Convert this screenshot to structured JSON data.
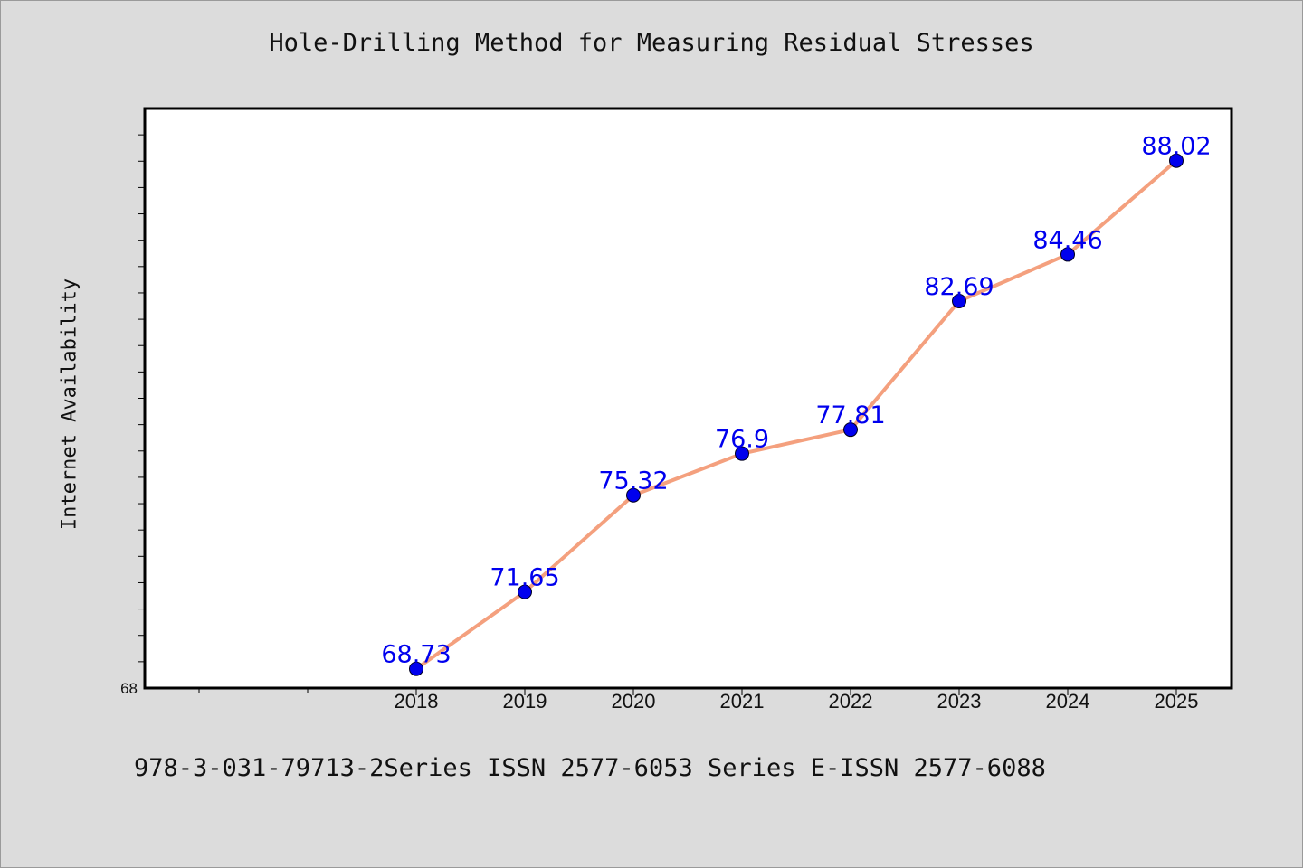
{
  "colors": {
    "background": "#dcdcdc",
    "plot_area": "#ffffff",
    "line": "#f4a07e",
    "marker": "#0000ee",
    "data_label": "#0000ee"
  },
  "footer": "978-3-031-79713-2Series ISSN 2577-6053 Series E-ISSN 2577-6088",
  "chart_data": {
    "type": "line",
    "title": "Hole-Drilling Method for Measuring Residual Stresses",
    "xlabel": "",
    "ylabel": "Internet Availability",
    "categories": [
      "2018",
      "2019",
      "2020",
      "2021",
      "2022",
      "2023",
      "2024",
      "2025"
    ],
    "values": [
      68.73,
      71.65,
      75.32,
      76.9,
      77.81,
      82.69,
      84.46,
      88.02
    ],
    "data_labels": [
      "68.73",
      "71.65",
      "75.32",
      "76.9",
      "77.81",
      "82.69",
      "84.46",
      "88.02"
    ],
    "ylim": [
      68,
      90
    ],
    "y_tick_labels": [
      "68"
    ],
    "grid": false,
    "legend": "none"
  }
}
